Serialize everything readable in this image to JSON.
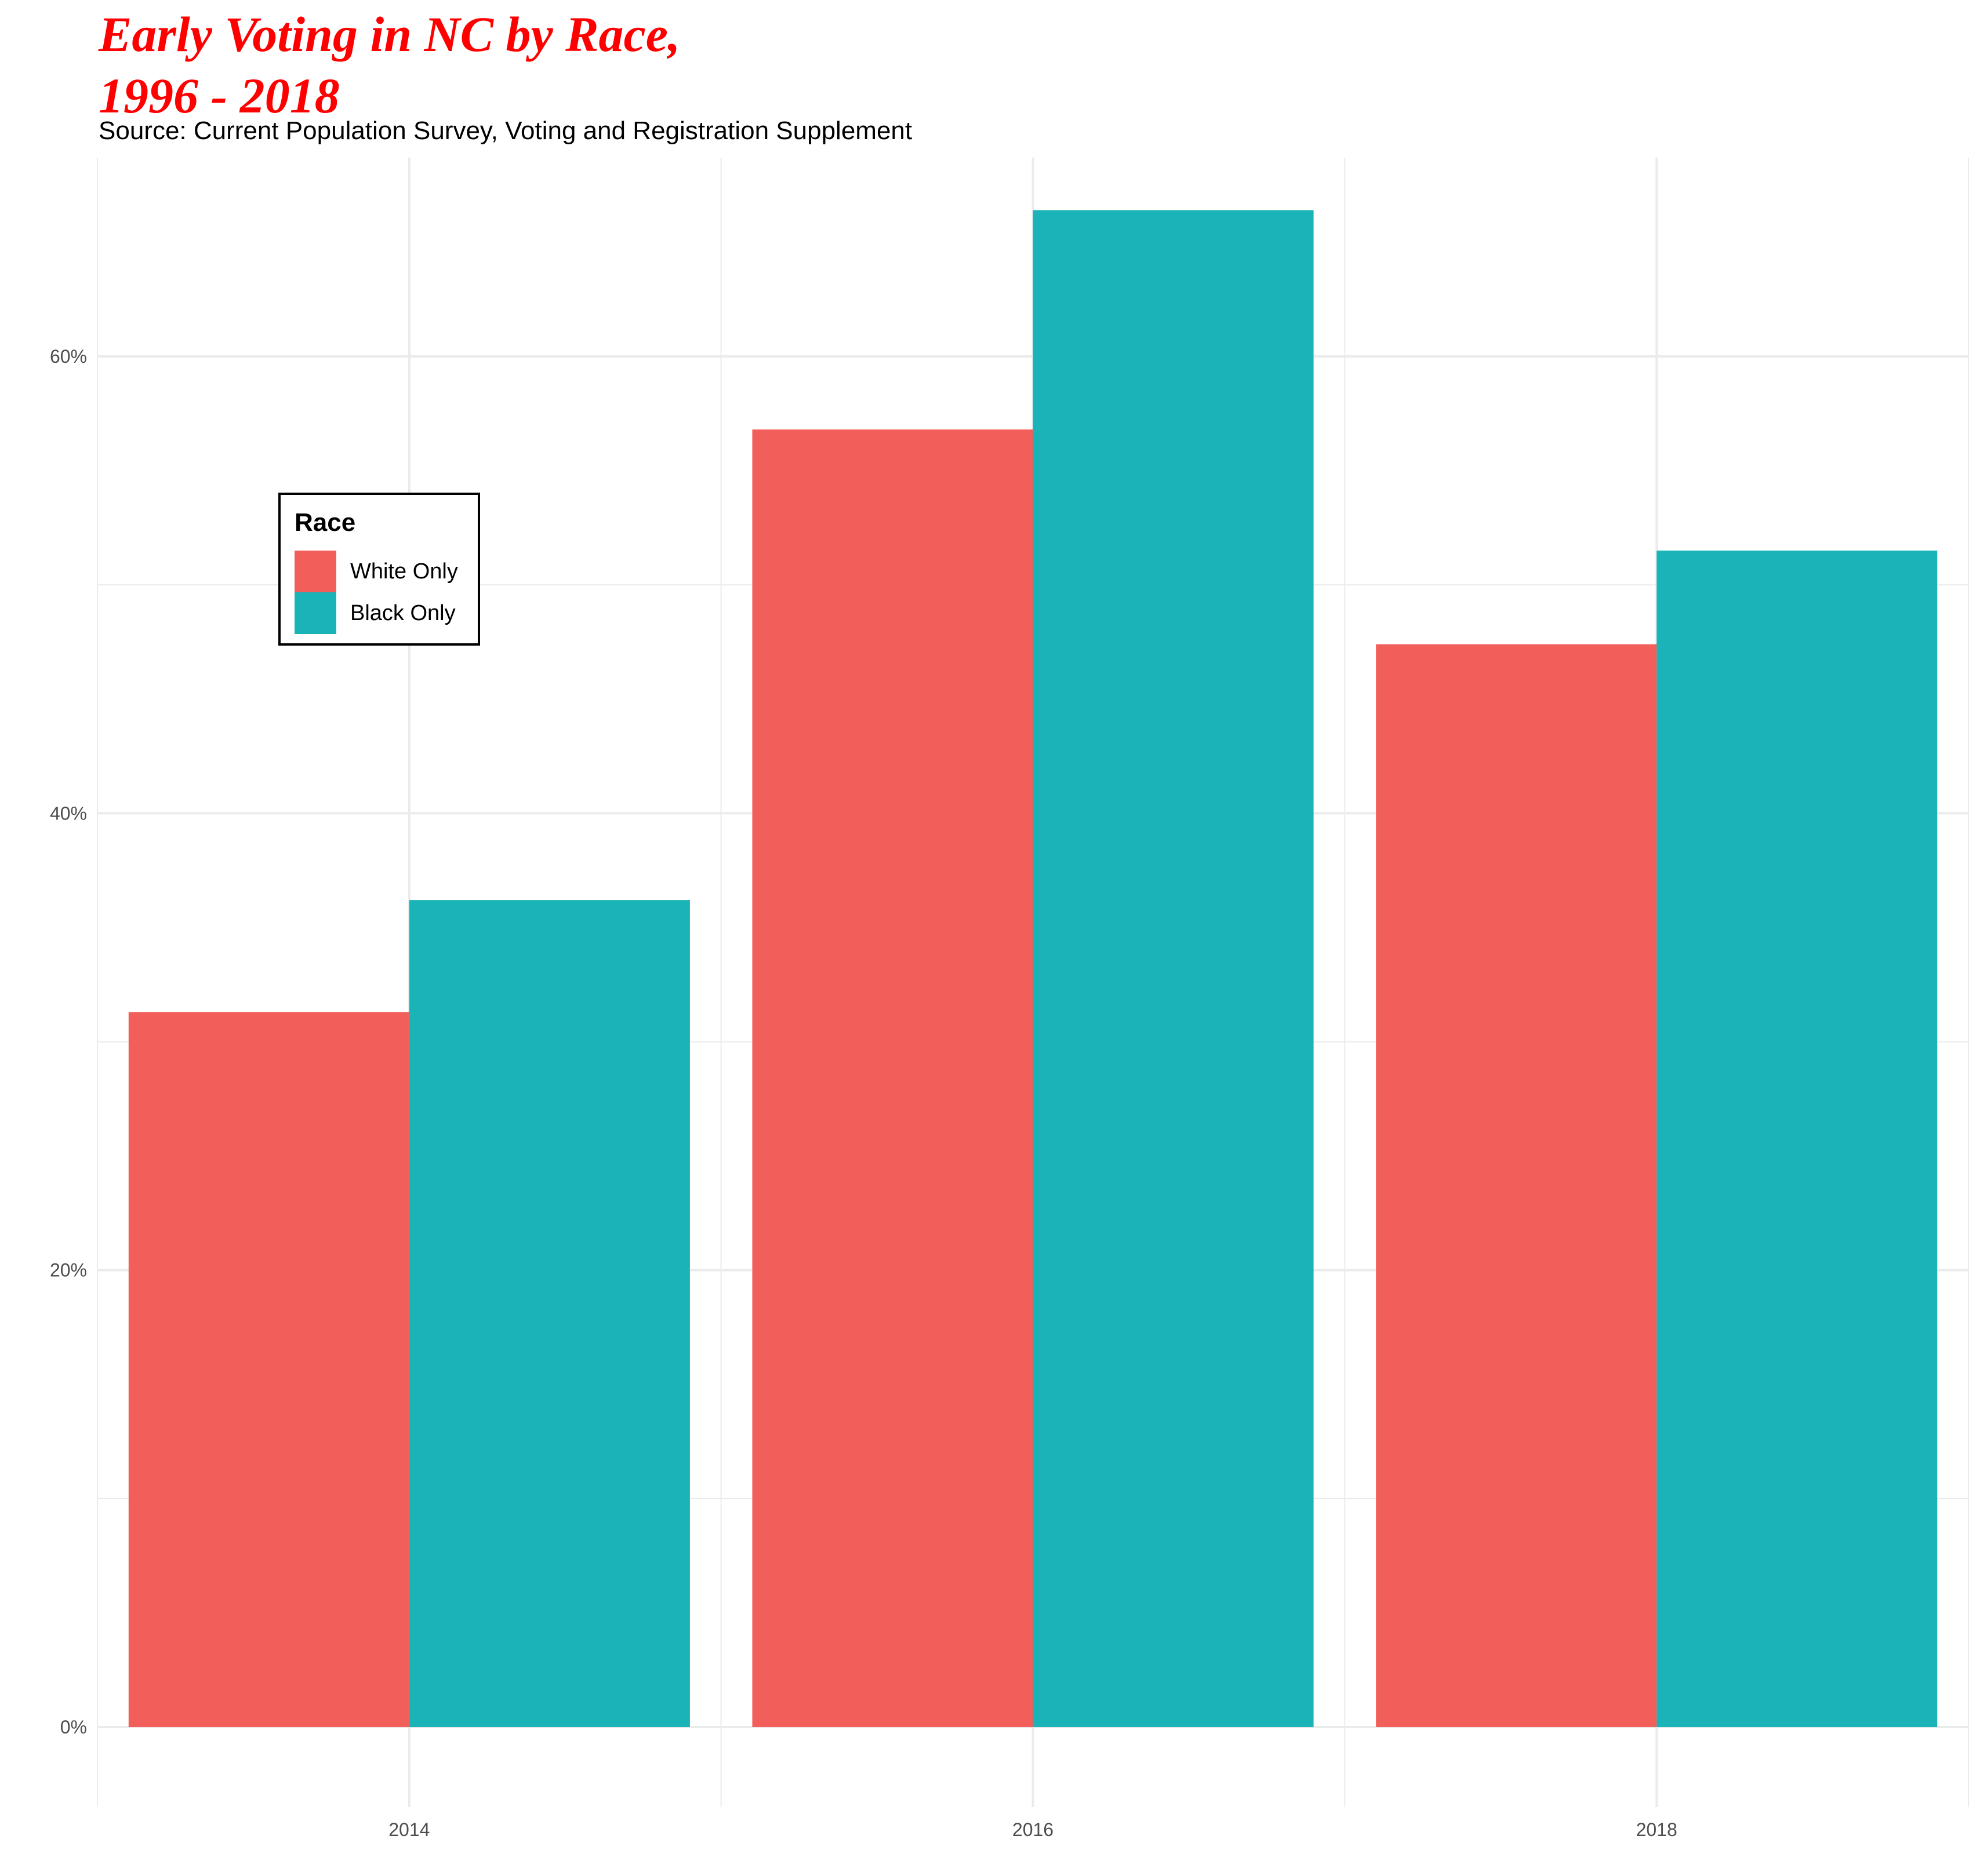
{
  "title_lines": [
    "Early Voting in NC by Race,",
    "1996 - 2018"
  ],
  "subtitle": "Source: Current Population Survey, Voting and Registration Supplement",
  "colors": {
    "white_only": "#f25f5a",
    "black_only": "#1ab3b7",
    "title": "#ff0000",
    "grid": "#ebebeb"
  },
  "chart_data": {
    "type": "bar",
    "categories": [
      "2014",
      "2016",
      "2018"
    ],
    "series": [
      {
        "name": "White Only",
        "values": [
          31.3,
          56.8,
          47.4
        ],
        "color": "#f25f5a"
      },
      {
        "name": "Black Only",
        "values": [
          36.2,
          66.4,
          51.5
        ],
        "color": "#1ab3b7"
      }
    ],
    "ylim": [
      -3.5,
      68.7
    ],
    "yticks": [
      0,
      20,
      40,
      60
    ],
    "ytick_labels": [
      "0%",
      "20%",
      "40%",
      "60%"
    ],
    "legend": {
      "title": "Race",
      "position": "top-left"
    },
    "grid": true
  }
}
